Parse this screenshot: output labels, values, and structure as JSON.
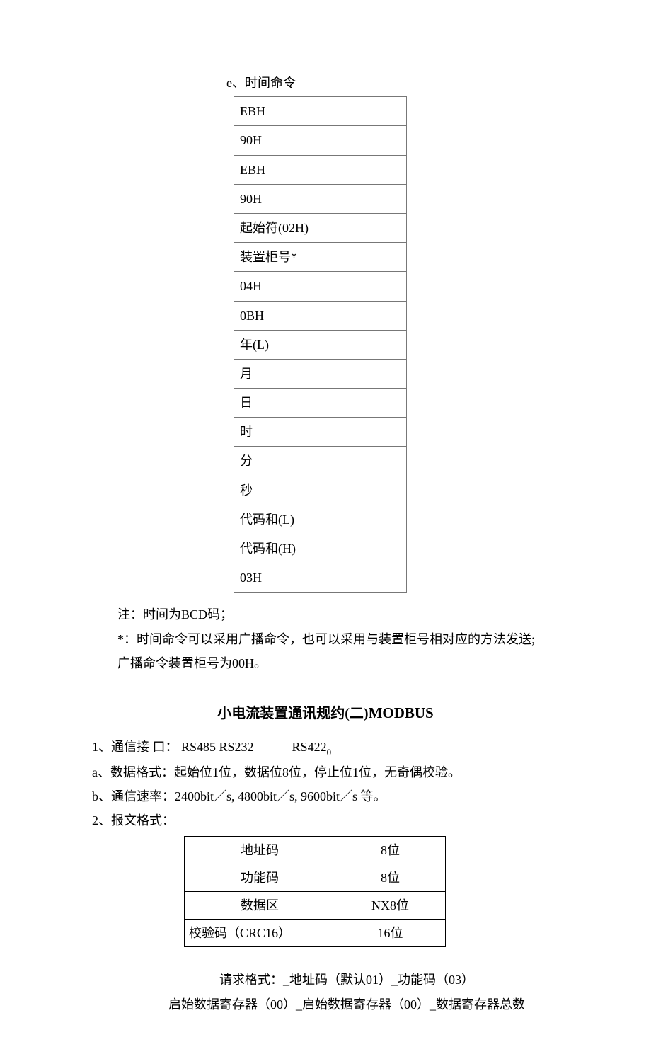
{
  "section_e_label": "e、时间命令",
  "time_table_rows": [
    "EBH",
    "90H",
    "EBH",
    "90H",
    "起始符(02H)",
    "装置柜号*",
    "04H",
    "0BH",
    "年(L)",
    "月",
    "日",
    "时",
    "分",
    "秒",
    "代码和(L)",
    "代码和(H)",
    "03H"
  ],
  "notes": {
    "n1": "注：时间为BCD码；",
    "n2": "*：时间命令可以采用广播命令，也可以采用与装置柜号相对应的方法发送;",
    "n3": "广播命令装置柜号为00H。"
  },
  "heading_cn": "小电流装置通讯规约(二)",
  "heading_latin": "MODBUS",
  "lines": {
    "L1a": "1、通信接 口： RS485 RS232",
    "L1b_gap": "　　　",
    "L1c": "RS422",
    "L1d_sub": "0",
    "La": "a、数据格式：起始位1位，数据位8位，停止位1位，无奇偶校验。",
    "Lb": "b、通信速率：2400bit／s, 4800bit／s, 9600bit／s 等。",
    "L2": "2、报文格式："
  },
  "format_table": {
    "rows": [
      {
        "c1": "地址码",
        "c2": "8位",
        "c1_align": "center"
      },
      {
        "c1": "功能码",
        "c2": "8位",
        "c1_align": "center"
      },
      {
        "c1": "数据区",
        "c2": "NX8位",
        "c1_align": "center"
      },
      {
        "c1": "校验码（CRC16）",
        "c2": "16位",
        "c1_align": "left"
      }
    ]
  },
  "req": {
    "r1": "请求格式：_地址码（默认01）_功能码（03）",
    "r2": "启始数据寄存器（00）_启始数据寄存器（00）_数据寄存器总数"
  }
}
